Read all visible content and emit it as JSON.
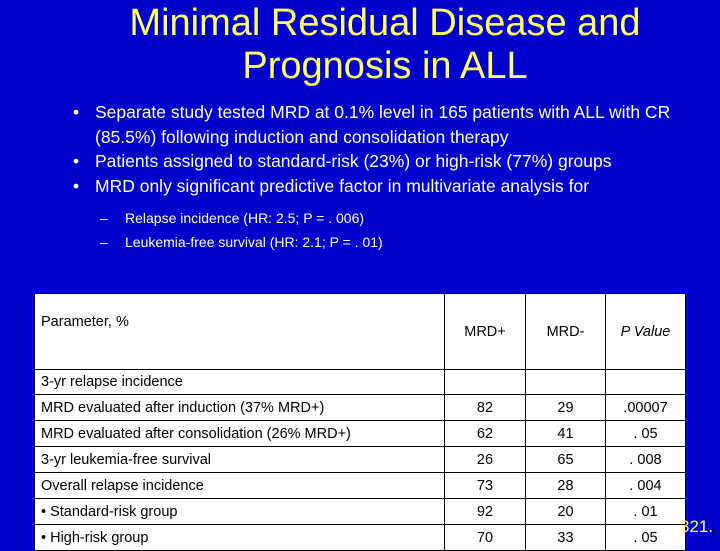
{
  "title": [
    "Minimal Residual Disease and",
    "Prognosis in ALL"
  ],
  "bullets": [
    "Separate study tested MRD at 0.1% level in 165 patients with ALL with CR (85.5%) following induction and consolidation therapy",
    "Patients assigned to standard-risk (23%) or high-risk (77%) groups",
    "MRD only significant predictive factor in multivariate analysis for"
  ],
  "subbullets": [
    "Relapse incidence (HR: 2.5; P = . 006)",
    "Leukemia-free survival (HR: 2.1; P = . 01)"
  ],
  "table": {
    "headers": [
      "Parameter, %",
      "MRD+",
      "MRD-",
      "P Value"
    ],
    "section_label": "3-yr relapse incidence",
    "rows": [
      {
        "label": "MRD evaluated after induction (37% MRD+)",
        "mrd_pos": "82",
        "mrd_neg": "29",
        "p": ".00007"
      },
      {
        "label": "MRD evaluated after consolidation (26% MRD+)",
        "mrd_pos": "62",
        "mrd_neg": "41",
        "p": ". 05"
      },
      {
        "label": "3-yr leukemia-free survival",
        "mrd_pos": "26",
        "mrd_neg": "65",
        "p": ". 008"
      },
      {
        "label": "Overall relapse incidence",
        "mrd_pos": "73",
        "mrd_neg": "28",
        "p": ". 004"
      },
      {
        "label": "• Standard-risk group",
        "mrd_pos": "92",
        "mrd_neg": "20",
        "p": ". 01"
      },
      {
        "label": "• High-risk group",
        "mrd_pos": "70",
        "mrd_neg": "33",
        "p": ". 05"
      }
    ]
  },
  "citation": "321.",
  "colors": {
    "background": "#0000cc",
    "title": "#ffff66",
    "text": "#ffffff"
  }
}
